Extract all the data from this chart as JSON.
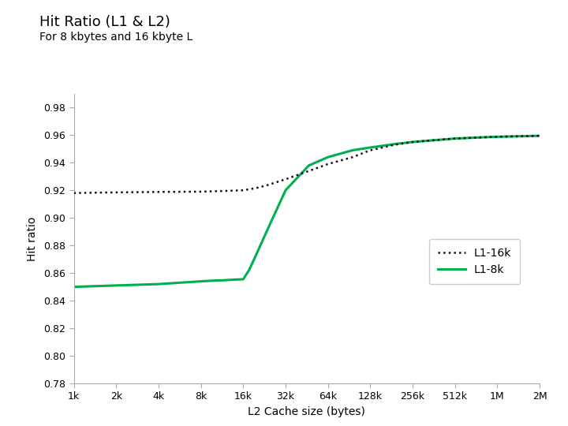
{
  "title_line1": "Hit Ratio (L1 & L2)",
  "title_line2": "For 8 kbytes and 16 kbyte L",
  "xlabel": "L2 Cache size (bytes)",
  "ylabel": "Hit ratio",
  "ylim": [
    0.78,
    0.99
  ],
  "yticks": [
    0.78,
    0.8,
    0.82,
    0.84,
    0.86,
    0.88,
    0.9,
    0.92,
    0.94,
    0.96,
    0.98
  ],
  "xtick_labels": [
    "1k",
    "2k",
    "4k",
    "8k",
    "16k",
    "32k",
    "64k",
    "128k",
    "256k",
    "512k",
    "1M",
    "2M"
  ],
  "xtick_values": [
    1024,
    2048,
    4096,
    8192,
    16384,
    32768,
    65536,
    131072,
    262144,
    524288,
    1048576,
    2097152
  ],
  "line_16k_color": "#111111",
  "line_8k_color": "#00b050",
  "legend_labels": [
    "L1-16k",
    "L1-8k"
  ],
  "line_16k_x": [
    1024,
    2048,
    4096,
    8192,
    12000,
    16384,
    20000,
    24000,
    32768,
    48000,
    65536,
    98000,
    131072,
    196000,
    262144,
    393000,
    524288,
    786000,
    1048576,
    1572000,
    2097152
  ],
  "line_16k_y": [
    0.918,
    0.9185,
    0.9188,
    0.919,
    0.9195,
    0.92,
    0.9215,
    0.9235,
    0.928,
    0.934,
    0.939,
    0.944,
    0.949,
    0.953,
    0.955,
    0.9565,
    0.9575,
    0.9583,
    0.9588,
    0.9592,
    0.9595
  ],
  "line_8k_x": [
    1024,
    2048,
    4096,
    8192,
    10000,
    12000,
    14000,
    16384,
    18000,
    20000,
    24000,
    32768,
    48000,
    65536,
    98000,
    131072,
    196000,
    262144,
    393000,
    524288,
    786000,
    1048576,
    1572000,
    2097152
  ],
  "line_8k_y": [
    0.85,
    0.851,
    0.852,
    0.854,
    0.8545,
    0.8548,
    0.8552,
    0.8555,
    0.862,
    0.872,
    0.89,
    0.92,
    0.938,
    0.944,
    0.949,
    0.951,
    0.9535,
    0.955,
    0.9565,
    0.9575,
    0.9583,
    0.9588,
    0.9592,
    0.9595
  ]
}
